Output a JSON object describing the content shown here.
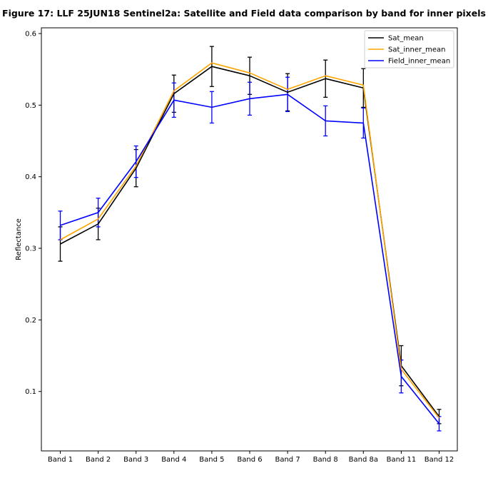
{
  "chart_data": {
    "type": "line",
    "title": "Figure 17: LLF 25JUN18  Sentinel2a: Satellite and Field data comparison by band for inner pixels",
    "xlabel": "",
    "ylabel": "Reflectance",
    "categories": [
      "Band 1",
      "Band 2",
      "Band 3",
      "Band 4",
      "Band 5",
      "Band 6",
      "Band 7",
      "Band 8",
      "Band 8a",
      "Band 11",
      "Band 12"
    ],
    "ylim": [
      0.017,
      0.608
    ],
    "yticks": [
      0.1,
      0.2,
      0.3,
      0.4,
      0.5,
      0.6
    ],
    "ytick_labels": [
      "0.1",
      "0.2",
      "0.3",
      "0.4",
      "0.5",
      "0.6"
    ],
    "grid": false,
    "legend_position": "top-right",
    "series": [
      {
        "name": "Sat_mean",
        "color": "#000000",
        "values": [
          0.306,
          0.334,
          0.412,
          0.516,
          0.554,
          0.541,
          0.518,
          0.537,
          0.524,
          0.136,
          0.065
        ],
        "errors": [
          0.024,
          0.022,
          0.026,
          0.026,
          0.028,
          0.026,
          0.026,
          0.026,
          0.027,
          0.028,
          0.01
        ]
      },
      {
        "name": "Sat_inner_mean",
        "color": "#ffa500",
        "values": [
          0.312,
          0.341,
          0.415,
          0.52,
          0.559,
          0.545,
          0.522,
          0.541,
          0.528,
          0.131,
          0.063
        ],
        "errors": []
      },
      {
        "name": "Field_inner_mean",
        "color": "#0000ff",
        "values": [
          0.332,
          0.35,
          0.421,
          0.507,
          0.497,
          0.509,
          0.515,
          0.478,
          0.475,
          0.121,
          0.055
        ],
        "errors": [
          0.02,
          0.02,
          0.022,
          0.024,
          0.022,
          0.023,
          0.024,
          0.021,
          0.021,
          0.023,
          0.01
        ]
      }
    ]
  }
}
